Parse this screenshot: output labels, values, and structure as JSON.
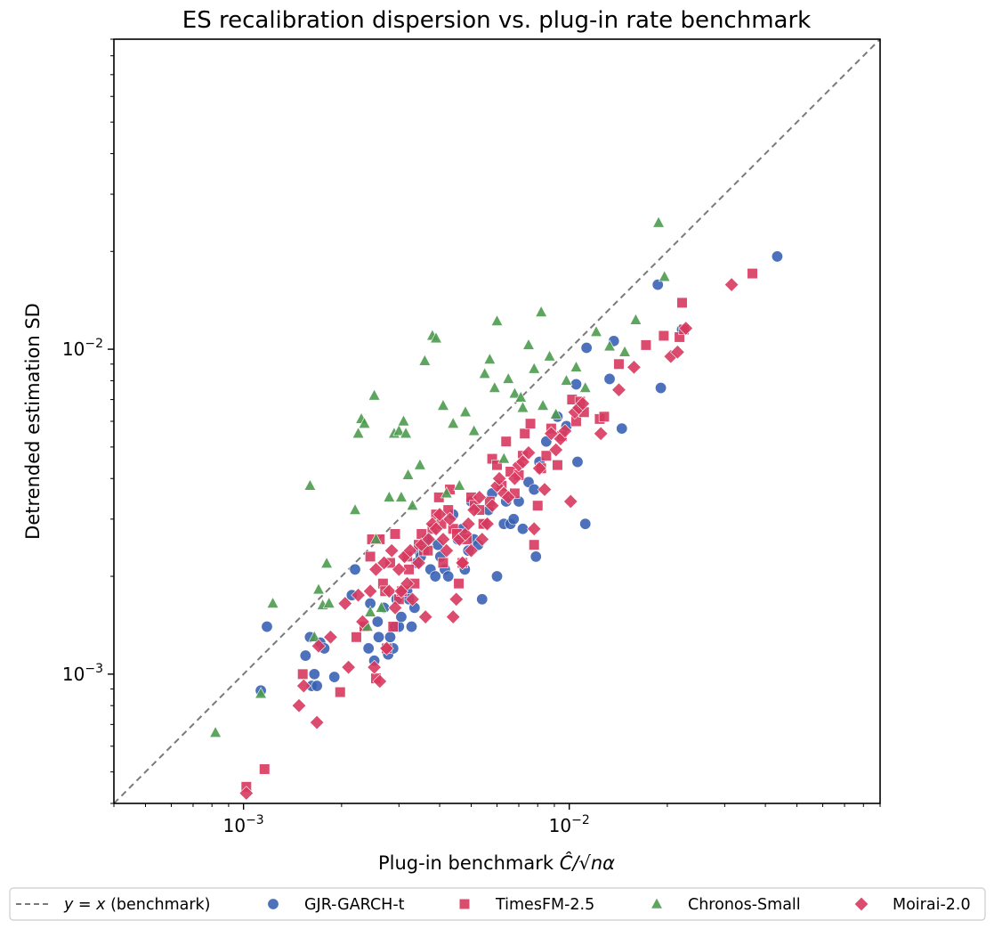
{
  "chart_data": {
    "type": "scatter",
    "title": "ES recalibration dispersion vs. plug-in rate benchmark",
    "xlabel_prefix": "Plug-in benchmark ",
    "xlabel_math": "Ĉ/√nα",
    "ylabel": "Detrended estimation SD",
    "x_scale": "log",
    "y_scale": "log",
    "xlim": [
      0.0004,
      0.09
    ],
    "ylim": [
      0.0004,
      0.09
    ],
    "x_major_ticks": [
      {
        "value": 0.001,
        "base": "10",
        "exp": "−3"
      },
      {
        "value": 0.01,
        "base": "10",
        "exp": "−2"
      }
    ],
    "y_major_ticks": [
      {
        "value": 0.001,
        "base": "10",
        "exp": "−3"
      },
      {
        "value": 0.01,
        "base": "10",
        "exp": "−2"
      }
    ],
    "grid": false,
    "legend_position": "bottom",
    "reference_line": {
      "name": "y = x (benchmark)",
      "math": "y = x",
      "suffix": " (benchmark)",
      "color": "#7a7a7a"
    },
    "series": [
      {
        "name": "GJR-GARCH-t",
        "marker": "circle",
        "color": "#3a62b4",
        "points": [
          [
            0.00113,
            0.00089
          ],
          [
            0.00118,
            0.0014
          ],
          [
            0.00155,
            0.00114
          ],
          [
            0.0016,
            0.0013
          ],
          [
            0.00162,
            0.00092
          ],
          [
            0.00165,
            0.001
          ],
          [
            0.00168,
            0.00092
          ],
          [
            0.00172,
            0.00125
          ],
          [
            0.00177,
            0.0012
          ],
          [
            0.0019,
            0.00098
          ],
          [
            0.00215,
            0.00175
          ],
          [
            0.0022,
            0.0021
          ],
          [
            0.00235,
            0.0014
          ],
          [
            0.00242,
            0.0012
          ],
          [
            0.00245,
            0.00165
          ],
          [
            0.00252,
            0.0011
          ],
          [
            0.00258,
            0.00145
          ],
          [
            0.0026,
            0.0013
          ],
          [
            0.0027,
            0.0016
          ],
          [
            0.00278,
            0.00115
          ],
          [
            0.00282,
            0.0013
          ],
          [
            0.00288,
            0.0012
          ],
          [
            0.00292,
            0.0014
          ],
          [
            0.00295,
            0.0017
          ],
          [
            0.003,
            0.0014
          ],
          [
            0.00305,
            0.0015
          ],
          [
            0.0031,
            0.0018
          ],
          [
            0.00318,
            0.0018
          ],
          [
            0.00322,
            0.0017
          ],
          [
            0.00328,
            0.0014
          ],
          [
            0.00335,
            0.0016
          ],
          [
            0.0034,
            0.0022
          ],
          [
            0.00345,
            0.0024
          ],
          [
            0.0035,
            0.0023
          ],
          [
            0.00365,
            0.0026
          ],
          [
            0.00375,
            0.0021
          ],
          [
            0.00388,
            0.002
          ],
          [
            0.00395,
            0.0025
          ],
          [
            0.00402,
            0.0023
          ],
          [
            0.00415,
            0.0021
          ],
          [
            0.00425,
            0.002
          ],
          [
            0.0044,
            0.0031
          ],
          [
            0.00455,
            0.0026
          ],
          [
            0.0047,
            0.0028
          ],
          [
            0.00478,
            0.0021
          ],
          [
            0.0049,
            0.0024
          ],
          [
            0.005,
            0.0034
          ],
          [
            0.0051,
            0.0026
          ],
          [
            0.00525,
            0.0025
          ],
          [
            0.0054,
            0.0017
          ],
          [
            0.0055,
            0.0029
          ],
          [
            0.00565,
            0.0032
          ],
          [
            0.0058,
            0.0036
          ],
          [
            0.006,
            0.002
          ],
          [
            0.0063,
            0.0029
          ],
          [
            0.0064,
            0.0034
          ],
          [
            0.0066,
            0.0029
          ],
          [
            0.00675,
            0.003
          ],
          [
            0.007,
            0.0034
          ],
          [
            0.0072,
            0.0028
          ],
          [
            0.0075,
            0.0039
          ],
          [
            0.0078,
            0.0037
          ],
          [
            0.0079,
            0.0023
          ],
          [
            0.0081,
            0.0045
          ],
          [
            0.0085,
            0.0052
          ],
          [
            0.0092,
            0.0062
          ],
          [
            0.0098,
            0.0058
          ],
          [
            0.0105,
            0.0078
          ],
          [
            0.0106,
            0.0045
          ],
          [
            0.0108,
            0.0066
          ],
          [
            0.0112,
            0.0029
          ],
          [
            0.0113,
            0.0101
          ],
          [
            0.0133,
            0.0081
          ],
          [
            0.0137,
            0.0106
          ],
          [
            0.0145,
            0.0057
          ],
          [
            0.0187,
            0.0158
          ],
          [
            0.0191,
            0.0076
          ],
          [
            0.0222,
            0.0115
          ],
          [
            0.0435,
            0.0193
          ]
        ]
      },
      {
        "name": "TimesFM-2.5",
        "marker": "square",
        "color": "#d7385e",
        "points": [
          [
            0.00102,
            0.00045
          ],
          [
            0.00116,
            0.00051
          ],
          [
            0.00152,
            0.001
          ],
          [
            0.00198,
            0.00088
          ],
          [
            0.00222,
            0.0013
          ],
          [
            0.00235,
            0.0014
          ],
          [
            0.00245,
            0.0023
          ],
          [
            0.00248,
            0.0026
          ],
          [
            0.00255,
            0.00097
          ],
          [
            0.00262,
            0.0026
          ],
          [
            0.00268,
            0.0019
          ],
          [
            0.00272,
            0.0018
          ],
          [
            0.00275,
            0.0012
          ],
          [
            0.00282,
            0.0022
          ],
          [
            0.00288,
            0.0014
          ],
          [
            0.00292,
            0.0027
          ],
          [
            0.003,
            0.0017
          ],
          [
            0.00306,
            0.0018
          ],
          [
            0.00318,
            0.0023
          ],
          [
            0.00322,
            0.0021
          ],
          [
            0.00335,
            0.0019
          ],
          [
            0.00345,
            0.0025
          ],
          [
            0.00352,
            0.0027
          ],
          [
            0.00358,
            0.0024
          ],
          [
            0.00368,
            0.0024
          ],
          [
            0.0038,
            0.0028
          ],
          [
            0.0039,
            0.0031
          ],
          [
            0.00398,
            0.0035
          ],
          [
            0.00405,
            0.0029
          ],
          [
            0.0041,
            0.0022
          ],
          [
            0.00425,
            0.0032
          ],
          [
            0.0043,
            0.0037
          ],
          [
            0.0044,
            0.0028
          ],
          [
            0.00452,
            0.0027
          ],
          [
            0.00458,
            0.0019
          ],
          [
            0.0047,
            0.0022
          ],
          [
            0.00485,
            0.0026
          ],
          [
            0.005,
            0.0035
          ],
          [
            0.00512,
            0.0033
          ],
          [
            0.0053,
            0.0032
          ],
          [
            0.00545,
            0.0029
          ],
          [
            0.0057,
            0.0034
          ],
          [
            0.0058,
            0.0046
          ],
          [
            0.006,
            0.0044
          ],
          [
            0.0062,
            0.0038
          ],
          [
            0.0064,
            0.0052
          ],
          [
            0.0066,
            0.0042
          ],
          [
            0.0068,
            0.0036
          ],
          [
            0.007,
            0.0041
          ],
          [
            0.0072,
            0.0047
          ],
          [
            0.0073,
            0.0055
          ],
          [
            0.0076,
            0.0059
          ],
          [
            0.0078,
            0.0025
          ],
          [
            0.008,
            0.0033
          ],
          [
            0.0082,
            0.0043
          ],
          [
            0.0085,
            0.0047
          ],
          [
            0.0088,
            0.0057
          ],
          [
            0.0092,
            0.0044
          ],
          [
            0.0095,
            0.0054
          ],
          [
            0.0102,
            0.007
          ],
          [
            0.0105,
            0.006
          ],
          [
            0.0108,
            0.0069
          ],
          [
            0.0111,
            0.0064
          ],
          [
            0.0124,
            0.0061
          ],
          [
            0.0128,
            0.0062
          ],
          [
            0.0142,
            0.009
          ],
          [
            0.0172,
            0.0103
          ],
          [
            0.0195,
            0.011
          ],
          [
            0.0218,
            0.0109
          ],
          [
            0.0225,
            0.0115
          ],
          [
            0.0222,
            0.0139
          ],
          [
            0.0365,
            0.0171
          ]
        ]
      },
      {
        "name": "Chronos-Small",
        "marker": "triangle",
        "color": "#4c9b4f",
        "points": [
          [
            0.00082,
            0.00066
          ],
          [
            0.00113,
            0.00087
          ],
          [
            0.00123,
            0.00165
          ],
          [
            0.0016,
            0.0038
          ],
          [
            0.00165,
            0.0013
          ],
          [
            0.0017,
            0.00182
          ],
          [
            0.00175,
            0.00163
          ],
          [
            0.0018,
            0.00219
          ],
          [
            0.00183,
            0.00165
          ],
          [
            0.0022,
            0.0032
          ],
          [
            0.00225,
            0.0055
          ],
          [
            0.0023,
            0.0061
          ],
          [
            0.00235,
            0.0059
          ],
          [
            0.0024,
            0.0014
          ],
          [
            0.00245,
            0.00155
          ],
          [
            0.00252,
            0.0072
          ],
          [
            0.00255,
            0.0026
          ],
          [
            0.00265,
            0.0016
          ],
          [
            0.0028,
            0.0035
          ],
          [
            0.0029,
            0.0055
          ],
          [
            0.003,
            0.0056
          ],
          [
            0.00305,
            0.0035
          ],
          [
            0.0031,
            0.006
          ],
          [
            0.00315,
            0.0055
          ],
          [
            0.0032,
            0.0041
          ],
          [
            0.0033,
            0.0033
          ],
          [
            0.00348,
            0.0044
          ],
          [
            0.0036,
            0.0092
          ],
          [
            0.0038,
            0.011
          ],
          [
            0.0039,
            0.0108
          ],
          [
            0.0041,
            0.0067
          ],
          [
            0.0042,
            0.0036
          ],
          [
            0.0044,
            0.0059
          ],
          [
            0.0046,
            0.0038
          ],
          [
            0.0048,
            0.0064
          ],
          [
            0.0051,
            0.0056
          ],
          [
            0.0055,
            0.0084
          ],
          [
            0.0057,
            0.0093
          ],
          [
            0.0059,
            0.0076
          ],
          [
            0.006,
            0.0122
          ],
          [
            0.0063,
            0.0046
          ],
          [
            0.0065,
            0.0081
          ],
          [
            0.0068,
            0.0073
          ],
          [
            0.0071,
            0.0071
          ],
          [
            0.0072,
            0.0066
          ],
          [
            0.0075,
            0.0103
          ],
          [
            0.0078,
            0.0087
          ],
          [
            0.0082,
            0.013
          ],
          [
            0.0083,
            0.0067
          ],
          [
            0.0087,
            0.0095
          ],
          [
            0.0091,
            0.0063
          ],
          [
            0.0098,
            0.008
          ],
          [
            0.0105,
            0.0088
          ],
          [
            0.0112,
            0.0076
          ],
          [
            0.0121,
            0.0113
          ],
          [
            0.0133,
            0.0102
          ],
          [
            0.0148,
            0.0098
          ],
          [
            0.016,
            0.0123
          ],
          [
            0.0188,
            0.0245
          ],
          [
            0.0196,
            0.0167
          ]
        ]
      },
      {
        "name": "Moirai-2.0",
        "marker": "diamond",
        "color": "#d7385e",
        "points": [
          [
            0.00102,
            0.00043
          ],
          [
            0.00148,
            0.0008
          ],
          [
            0.00153,
            0.00092
          ],
          [
            0.00168,
            0.00071
          ],
          [
            0.0017,
            0.00122
          ],
          [
            0.00185,
            0.0013
          ],
          [
            0.00205,
            0.00165
          ],
          [
            0.0021,
            0.00105
          ],
          [
            0.00225,
            0.00175
          ],
          [
            0.00232,
            0.00145
          ],
          [
            0.00245,
            0.0018
          ],
          [
            0.00252,
            0.00105
          ],
          [
            0.00255,
            0.0021
          ],
          [
            0.00262,
            0.00095
          ],
          [
            0.0027,
            0.0022
          ],
          [
            0.00275,
            0.0012
          ],
          [
            0.0028,
            0.0018
          ],
          [
            0.00285,
            0.0024
          ],
          [
            0.00292,
            0.0016
          ],
          [
            0.003,
            0.0021
          ],
          [
            0.00305,
            0.0018
          ],
          [
            0.00312,
            0.0023
          ],
          [
            0.00318,
            0.0019
          ],
          [
            0.00325,
            0.0024
          ],
          [
            0.0033,
            0.0017
          ],
          [
            0.00345,
            0.0022
          ],
          [
            0.00352,
            0.0025
          ],
          [
            0.00362,
            0.0015
          ],
          [
            0.0037,
            0.0026
          ],
          [
            0.0038,
            0.0029
          ],
          [
            0.0039,
            0.0028
          ],
          [
            0.004,
            0.0031
          ],
          [
            0.0041,
            0.0026
          ],
          [
            0.0042,
            0.0024
          ],
          [
            0.0043,
            0.003
          ],
          [
            0.0044,
            0.0015
          ],
          [
            0.0045,
            0.0017
          ],
          [
            0.0046,
            0.0026
          ],
          [
            0.0047,
            0.0022
          ],
          [
            0.0048,
            0.0027
          ],
          [
            0.0049,
            0.0029
          ],
          [
            0.005,
            0.0024
          ],
          [
            0.0051,
            0.0032
          ],
          [
            0.0053,
            0.0035
          ],
          [
            0.0054,
            0.0026
          ],
          [
            0.0056,
            0.0029
          ],
          [
            0.0058,
            0.0033
          ],
          [
            0.006,
            0.0038
          ],
          [
            0.0061,
            0.004
          ],
          [
            0.0063,
            0.0036
          ],
          [
            0.0065,
            0.0035
          ],
          [
            0.0068,
            0.004
          ],
          [
            0.007,
            0.0044
          ],
          [
            0.0072,
            0.0045
          ],
          [
            0.0075,
            0.0048
          ],
          [
            0.0078,
            0.0028
          ],
          [
            0.0081,
            0.0043
          ],
          [
            0.0084,
            0.0037
          ],
          [
            0.0088,
            0.0055
          ],
          [
            0.0091,
            0.0049
          ],
          [
            0.0094,
            0.0053
          ],
          [
            0.0097,
            0.0056
          ],
          [
            0.0101,
            0.0034
          ],
          [
            0.0104,
            0.0064
          ],
          [
            0.0107,
            0.0066
          ],
          [
            0.011,
            0.0068
          ],
          [
            0.0125,
            0.0055
          ],
          [
            0.0142,
            0.0075
          ],
          [
            0.0158,
            0.0088
          ],
          [
            0.0205,
            0.0095
          ],
          [
            0.0215,
            0.0098
          ],
          [
            0.0228,
            0.0116
          ],
          [
            0.0315,
            0.0158
          ]
        ]
      }
    ]
  }
}
